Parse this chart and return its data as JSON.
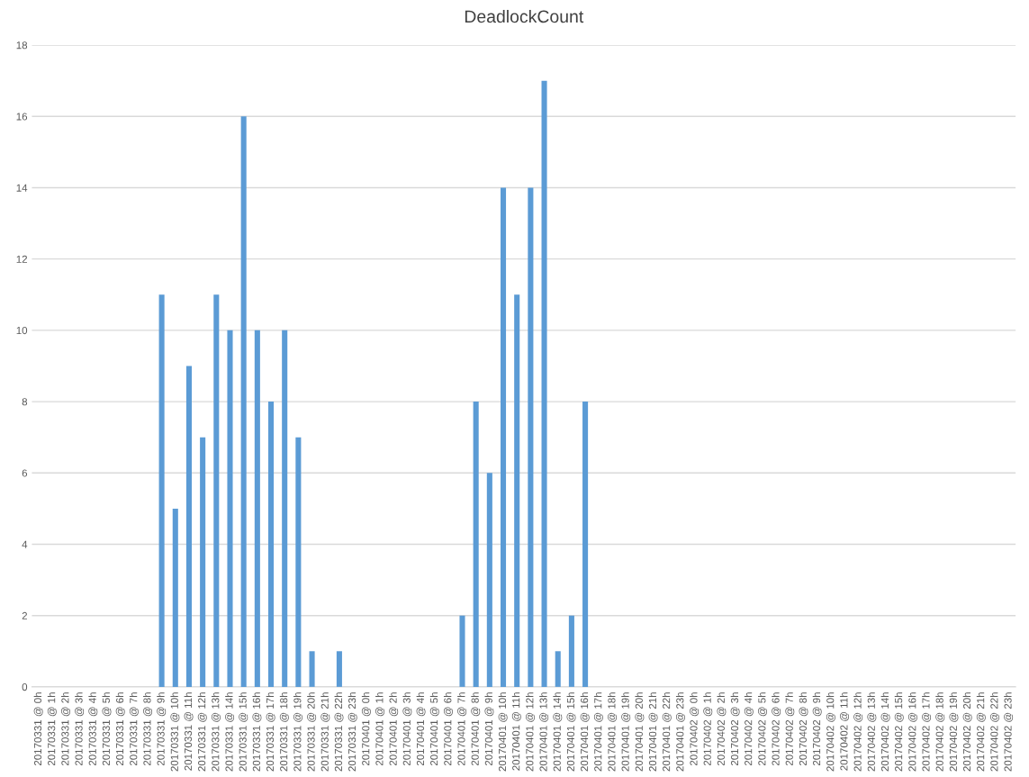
{
  "chart_data": {
    "type": "bar",
    "title": "DeadlockCount",
    "categories": [
      "20170331 @ 0h",
      "20170331 @ 1h",
      "20170331 @ 2h",
      "20170331 @ 3h",
      "20170331 @ 4h",
      "20170331 @ 5h",
      "20170331 @ 6h",
      "20170331 @ 7h",
      "20170331 @ 8h",
      "20170331 @ 9h",
      "20170331 @ 10h",
      "20170331 @ 11h",
      "20170331 @ 12h",
      "20170331 @ 13h",
      "20170331 @ 14h",
      "20170331 @ 15h",
      "20170331 @ 16h",
      "20170331 @ 17h",
      "20170331 @ 18h",
      "20170331 @ 19h",
      "20170331 @ 20h",
      "20170331 @ 21h",
      "20170331 @ 22h",
      "20170331 @ 23h",
      "20170401 @ 0h",
      "20170401 @ 1h",
      "20170401 @ 2h",
      "20170401 @ 3h",
      "20170401 @ 4h",
      "20170401 @ 5h",
      "20170401 @ 6h",
      "20170401 @ 7h",
      "20170401 @ 8h",
      "20170401 @ 9h",
      "20170401 @ 10h",
      "20170401 @ 11h",
      "20170401 @ 12h",
      "20170401 @ 13h",
      "20170401 @ 14h",
      "20170401 @ 15h",
      "20170401 @ 16h",
      "20170401 @ 17h",
      "20170401 @ 18h",
      "20170401 @ 19h",
      "20170401 @ 20h",
      "20170401 @ 21h",
      "20170401 @ 22h",
      "20170401 @ 23h",
      "20170402 @ 0h",
      "20170402 @ 1h",
      "20170402 @ 2h",
      "20170402 @ 3h",
      "20170402 @ 4h",
      "20170402 @ 5h",
      "20170402 @ 6h",
      "20170402 @ 7h",
      "20170402 @ 8h",
      "20170402 @ 9h",
      "20170402 @ 10h",
      "20170402 @ 11h",
      "20170402 @ 12h",
      "20170402 @ 13h",
      "20170402 @ 14h",
      "20170402 @ 15h",
      "20170402 @ 16h",
      "20170402 @ 17h",
      "20170402 @ 18h",
      "20170402 @ 19h",
      "20170402 @ 20h",
      "20170402 @ 21h",
      "20170402 @ 22h",
      "20170402 @ 23h"
    ],
    "values": [
      0,
      0,
      0,
      0,
      0,
      0,
      0,
      0,
      0,
      11,
      5,
      9,
      7,
      11,
      10,
      16,
      10,
      8,
      10,
      7,
      1,
      0,
      1,
      0,
      0,
      0,
      0,
      0,
      0,
      0,
      0,
      2,
      8,
      6,
      14,
      11,
      14,
      17,
      1,
      2,
      8,
      0,
      0,
      0,
      0,
      0,
      0,
      0,
      0,
      0,
      0,
      0,
      0,
      0,
      0,
      0,
      0,
      0,
      0,
      0,
      0,
      0,
      0,
      0,
      0,
      0,
      0,
      0,
      0,
      0,
      0,
      0
    ],
    "color": "#5b9bd5",
    "ylim": [
      0,
      18
    ],
    "yticks": [
      0,
      2,
      4,
      6,
      8,
      10,
      12,
      14,
      16,
      18
    ],
    "grid": "y"
  }
}
